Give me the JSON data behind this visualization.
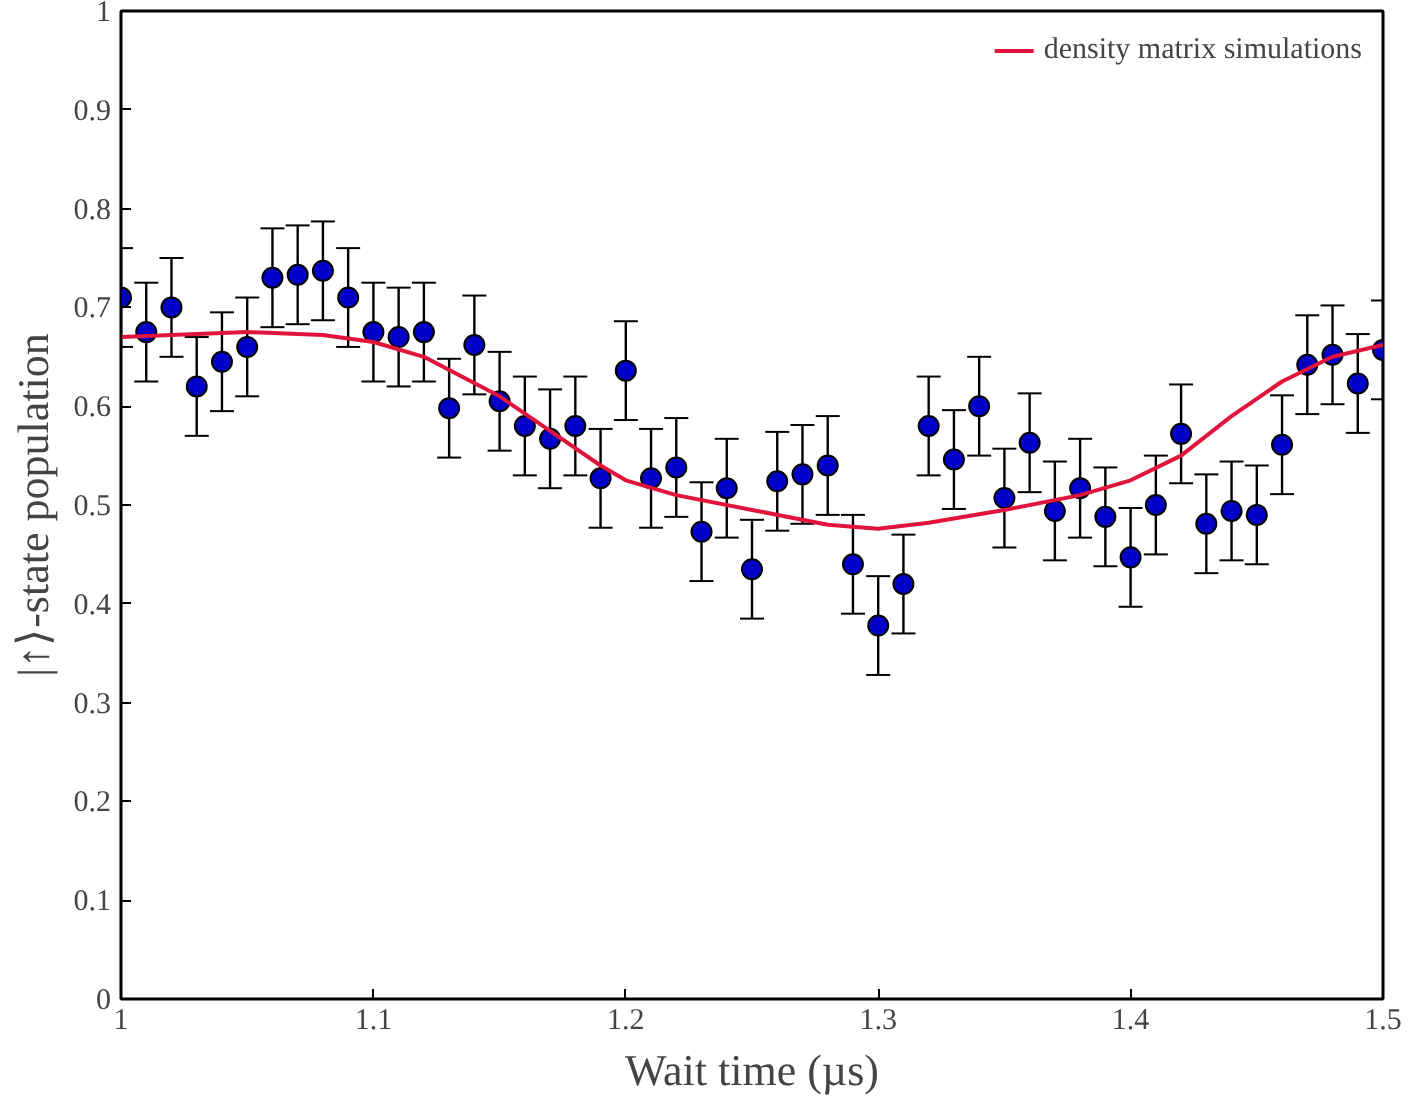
{
  "chart_data": {
    "type": "scatter",
    "xlabel": "Wait time (µs)",
    "ylabel": "|↑⟩-state population",
    "xlim": [
      1,
      1.5
    ],
    "ylim": [
      0,
      1
    ],
    "xticks": [
      1,
      1.1,
      1.2,
      1.3,
      1.4,
      1.5
    ],
    "yticks": [
      0,
      0.1,
      0.2,
      0.3,
      0.4,
      0.5,
      0.6,
      0.7,
      0.8,
      0.9,
      1
    ],
    "grid": false,
    "legend": "top right",
    "series": [
      {
        "color": "#0000c8",
        "marker": "circle",
        "x": [
          1.0,
          1.01,
          1.02,
          1.03,
          1.04,
          1.05,
          1.06,
          1.07,
          1.08,
          1.09,
          1.1,
          1.11,
          1.12,
          1.13,
          1.14,
          1.15,
          1.16,
          1.17,
          1.18,
          1.19,
          1.2,
          1.21,
          1.22,
          1.23,
          1.24,
          1.25,
          1.26,
          1.27,
          1.28,
          1.29,
          1.3,
          1.31,
          1.32,
          1.33,
          1.34,
          1.35,
          1.36,
          1.37,
          1.38,
          1.39,
          1.4,
          1.41,
          1.42,
          1.43,
          1.44,
          1.45,
          1.46,
          1.47,
          1.48,
          1.49,
          1.5
        ],
        "values": [
          0.71,
          0.675,
          0.7,
          0.62,
          0.645,
          0.66,
          0.73,
          0.733,
          0.737,
          0.71,
          0.675,
          0.67,
          0.675,
          0.598,
          0.662,
          0.605,
          0.58,
          0.567,
          0.58,
          0.527,
          0.636,
          0.527,
          0.538,
          0.473,
          0.517,
          0.435,
          0.524,
          0.531,
          0.54,
          0.44,
          0.378,
          0.42,
          0.58,
          0.546,
          0.6,
          0.507,
          0.563,
          0.494,
          0.517,
          0.488,
          0.447,
          0.5,
          0.572,
          0.481,
          0.494,
          0.49,
          0.561,
          0.642,
          0.652,
          0.623,
          0.657
        ],
        "errors": [
          0.05,
          0.05,
          0.05,
          0.05,
          0.05,
          0.05,
          0.05,
          0.05,
          0.05,
          0.05,
          0.05,
          0.05,
          0.05,
          0.05,
          0.05,
          0.05,
          0.05,
          0.05,
          0.05,
          0.05,
          0.05,
          0.05,
          0.05,
          0.05,
          0.05,
          0.05,
          0.05,
          0.05,
          0.05,
          0.05,
          0.05,
          0.05,
          0.05,
          0.05,
          0.05,
          0.05,
          0.05,
          0.05,
          0.05,
          0.05,
          0.05,
          0.05,
          0.05,
          0.05,
          0.05,
          0.05,
          0.05,
          0.05,
          0.05,
          0.05,
          0.05
        ]
      },
      {
        "type": "line",
        "name": "density matrix simulations",
        "color": "#e0143c",
        "line_style": "solid",
        "x": [
          1.0,
          1.05,
          1.08,
          1.1,
          1.12,
          1.15,
          1.17,
          1.19,
          1.2,
          1.22,
          1.25,
          1.28,
          1.3,
          1.32,
          1.35,
          1.38,
          1.4,
          1.42,
          1.44,
          1.46,
          1.48,
          1.5
        ],
        "values": [
          0.67,
          0.675,
          0.672,
          0.665,
          0.65,
          0.61,
          0.575,
          0.54,
          0.525,
          0.51,
          0.495,
          0.48,
          0.476,
          0.482,
          0.495,
          0.51,
          0.525,
          0.55,
          0.59,
          0.625,
          0.65,
          0.662
        ]
      }
    ]
  }
}
